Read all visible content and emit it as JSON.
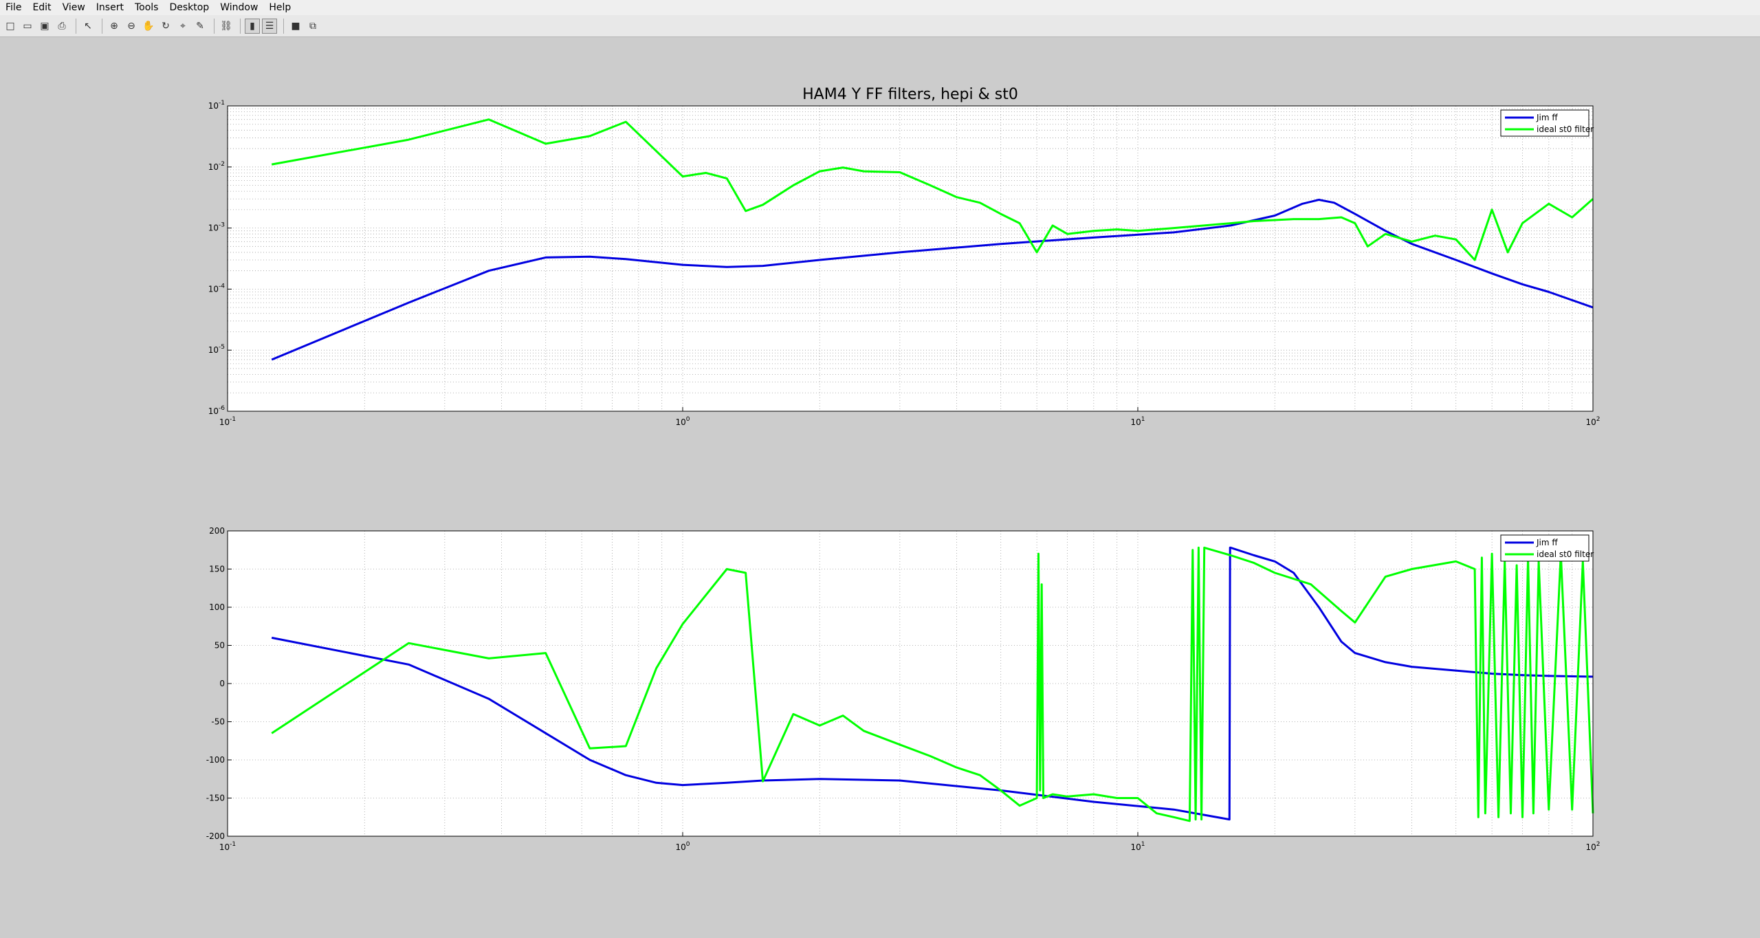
{
  "menubar": {
    "items": [
      "File",
      "Edit",
      "View",
      "Insert",
      "Tools",
      "Desktop",
      "Window",
      "Help"
    ]
  },
  "toolbar": {
    "buttons": [
      "new-figure-icon",
      "open-file-icon",
      "save-icon",
      "print-icon",
      "edit-plot-arrow-icon",
      "zoom-in-icon",
      "zoom-out-icon",
      "pan-hand-icon",
      "rotate-3d-icon",
      "data-cursor-icon",
      "brush-icon",
      "link-plot-icon",
      "insert-colorbar-icon",
      "insert-legend-icon",
      "hide-plot-tools-icon",
      "show-plot-tools-icon"
    ]
  },
  "colors": {
    "jim": "#0000e0",
    "ideal": "#00ff00"
  },
  "chart_data": [
    {
      "type": "line",
      "title": "HAM4 Y FF filters, hepi & st0",
      "xscale": "log",
      "yscale": "log",
      "xlim": [
        0.1,
        100
      ],
      "ylim": [
        1e-06,
        0.1
      ],
      "grid": true,
      "legend_position": "top-right",
      "xticks": [
        0.1,
        1,
        10,
        100
      ],
      "xtick_labels": [
        "10^-1",
        "10^0",
        "10^1",
        "10^2"
      ],
      "yticks": [
        1e-06,
        1e-05,
        0.0001,
        0.001,
        0.01,
        0.1
      ],
      "ytick_labels": [
        "10^-6",
        "10^-5",
        "10^-4",
        "10^-3",
        "10^-2",
        "10^-1"
      ],
      "series": [
        {
          "name": "Jim ff",
          "x": [
            0.125,
            0.25,
            0.375,
            0.5,
            0.625,
            0.75,
            1,
            1.25,
            1.5,
            2,
            3,
            5,
            8,
            12,
            16,
            20,
            23,
            25,
            27,
            30,
            35,
            40,
            50,
            60,
            70,
            80,
            100
          ],
          "y": [
            7e-06,
            6e-05,
            0.0002,
            0.00033,
            0.00034,
            0.00031,
            0.00025,
            0.00023,
            0.00024,
            0.0003,
            0.0004,
            0.00055,
            0.0007,
            0.00085,
            0.0011,
            0.0016,
            0.0025,
            0.0029,
            0.0026,
            0.0017,
            0.0009,
            0.00055,
            0.0003,
            0.00018,
            0.00012,
            9e-05,
            5e-05
          ]
        },
        {
          "name": "ideal st0 filter",
          "x": [
            0.125,
            0.25,
            0.375,
            0.5,
            0.625,
            0.75,
            1,
            1.125,
            1.25,
            1.375,
            1.5,
            1.75,
            2,
            2.25,
            2.5,
            3,
            3.5,
            4,
            4.5,
            5,
            5.5,
            6,
            6.5,
            7,
            8,
            9,
            10,
            12,
            14,
            16,
            18,
            20,
            22,
            25,
            28,
            30,
            32,
            35,
            40,
            45,
            50,
            55,
            60,
            65,
            70,
            80,
            90,
            100
          ],
          "y": [
            0.011,
            0.028,
            0.06,
            0.024,
            0.032,
            0.055,
            0.007,
            0.008,
            0.0065,
            0.0019,
            0.0024,
            0.005,
            0.0085,
            0.0098,
            0.0085,
            0.0082,
            0.005,
            0.0032,
            0.0026,
            0.0017,
            0.0012,
            0.0004,
            0.0011,
            0.0008,
            0.0009,
            0.00095,
            0.0009,
            0.001,
            0.0011,
            0.0012,
            0.0013,
            0.00135,
            0.0014,
            0.0014,
            0.0015,
            0.0012,
            0.0005,
            0.0008,
            0.0006,
            0.00075,
            0.00065,
            0.0003,
            0.002,
            0.0004,
            0.0012,
            0.0025,
            0.0015,
            0.003
          ]
        }
      ]
    },
    {
      "type": "line",
      "title": "",
      "xscale": "log",
      "yscale": "linear",
      "xlim": [
        0.1,
        100
      ],
      "ylim": [
        -200,
        200
      ],
      "grid": true,
      "legend_position": "top-right",
      "xticks": [
        0.1,
        1,
        10,
        100
      ],
      "xtick_labels": [
        "10^-1",
        "10^0",
        "10^1",
        "10^2"
      ],
      "yticks": [
        -200,
        -150,
        -100,
        -50,
        0,
        50,
        100,
        150,
        200
      ],
      "ytick_labels": [
        "-200",
        "-150",
        "-100",
        "-50",
        "0",
        "50",
        "100",
        "150",
        "200"
      ],
      "series": [
        {
          "name": "Jim ff",
          "x": [
            0.125,
            0.25,
            0.375,
            0.5,
            0.625,
            0.75,
            0.875,
            1,
            1.25,
            1.5,
            2,
            3,
            5,
            8,
            12,
            15.9,
            15.95,
            16,
            18,
            20,
            22,
            25,
            28,
            30,
            35,
            40,
            50,
            60,
            70,
            80,
            100
          ],
          "y": [
            60,
            25,
            -20,
            -65,
            -100,
            -120,
            -130,
            -133,
            -130,
            -127,
            -125,
            -127,
            -140,
            -155,
            -165,
            -178,
            178,
            178,
            168,
            160,
            145,
            100,
            55,
            40,
            28,
            22,
            17,
            13,
            11,
            10,
            9
          ]
        },
        {
          "name": "ideal st0 filter",
          "x": [
            0.125,
            0.25,
            0.375,
            0.5,
            0.625,
            0.75,
            0.875,
            1,
            1.25,
            1.375,
            1.5,
            1.75,
            2,
            2.25,
            2.5,
            3,
            3.5,
            4,
            4.5,
            5,
            5.5,
            6,
            6.05,
            6.1,
            6.15,
            6.2,
            6.5,
            7,
            8,
            9,
            10,
            11,
            12,
            13,
            13.2,
            13.4,
            13.6,
            13.8,
            14,
            16,
            18,
            20,
            24,
            28,
            30,
            35,
            40,
            50,
            55,
            56,
            57,
            58,
            60,
            62,
            64,
            66,
            68,
            70,
            72,
            74,
            76,
            80,
            85,
            90,
            95,
            100
          ],
          "y": [
            -65,
            53,
            33,
            40,
            -85,
            -82,
            20,
            78,
            150,
            145,
            -128,
            -40,
            -55,
            -42,
            -62,
            -80,
            -95,
            -110,
            -120,
            -140,
            -160,
            -150,
            170,
            -140,
            130,
            -150,
            -145,
            -148,
            -145,
            -150,
            -150,
            -170,
            -175,
            -180,
            175,
            -178,
            178,
            -178,
            178,
            168,
            158,
            145,
            130,
            95,
            80,
            140,
            150,
            160,
            150,
            -175,
            165,
            -170,
            170,
            -175,
            160,
            -170,
            155,
            -175,
            165,
            -170,
            160,
            -165,
            170,
            -165,
            160,
            -170
          ]
        }
      ]
    }
  ]
}
